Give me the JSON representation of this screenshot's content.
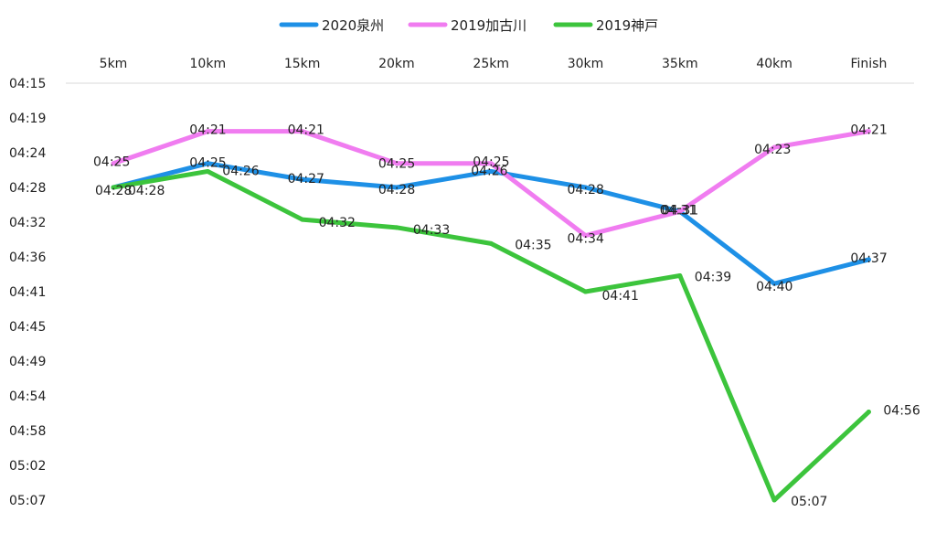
{
  "chart_data": {
    "type": "line",
    "categories": [
      "5km",
      "10km",
      "15km",
      "20km",
      "25km",
      "30km",
      "35km",
      "40km",
      "Finish"
    ],
    "y_tick_labels": [
      "04:15",
      "04:19",
      "04:24",
      "04:28",
      "04:32",
      "04:36",
      "04:41",
      "04:45",
      "04:49",
      "04:54",
      "04:58",
      "05:02",
      "05:07"
    ],
    "ylim_seconds": [
      255,
      307
    ],
    "y_axis_reversed": true,
    "grid": false,
    "legend_position": "top",
    "series": [
      {
        "name": "2020泉州",
        "color": "#1E90E6",
        "values_seconds": [
          268,
          265,
          267,
          268,
          266,
          268,
          271,
          280,
          277
        ],
        "labels": [
          "04:28",
          "04:25",
          "04:27",
          "04:28",
          "04:26",
          "04:28",
          "04:31",
          "04:40",
          "04:37"
        ]
      },
      {
        "name": "2019加古川",
        "color": "#F07CF0",
        "values_seconds": [
          265,
          261,
          261,
          265,
          265,
          274,
          271,
          263,
          261
        ],
        "labels": [
          "04:25",
          "04:21",
          "04:21",
          "04:25",
          "04:25",
          "04:34",
          "04:31",
          "04:23",
          "04:21"
        ]
      },
      {
        "name": "2019神戸",
        "color": "#3CC43C",
        "values_seconds": [
          268,
          266,
          272,
          273,
          275,
          281,
          279,
          307,
          296
        ],
        "labels": [
          "04:28",
          "04:26",
          "04:32",
          "04:33",
          "04:35",
          "04:41",
          "04:39",
          "05:07",
          "04:56"
        ]
      }
    ]
  }
}
